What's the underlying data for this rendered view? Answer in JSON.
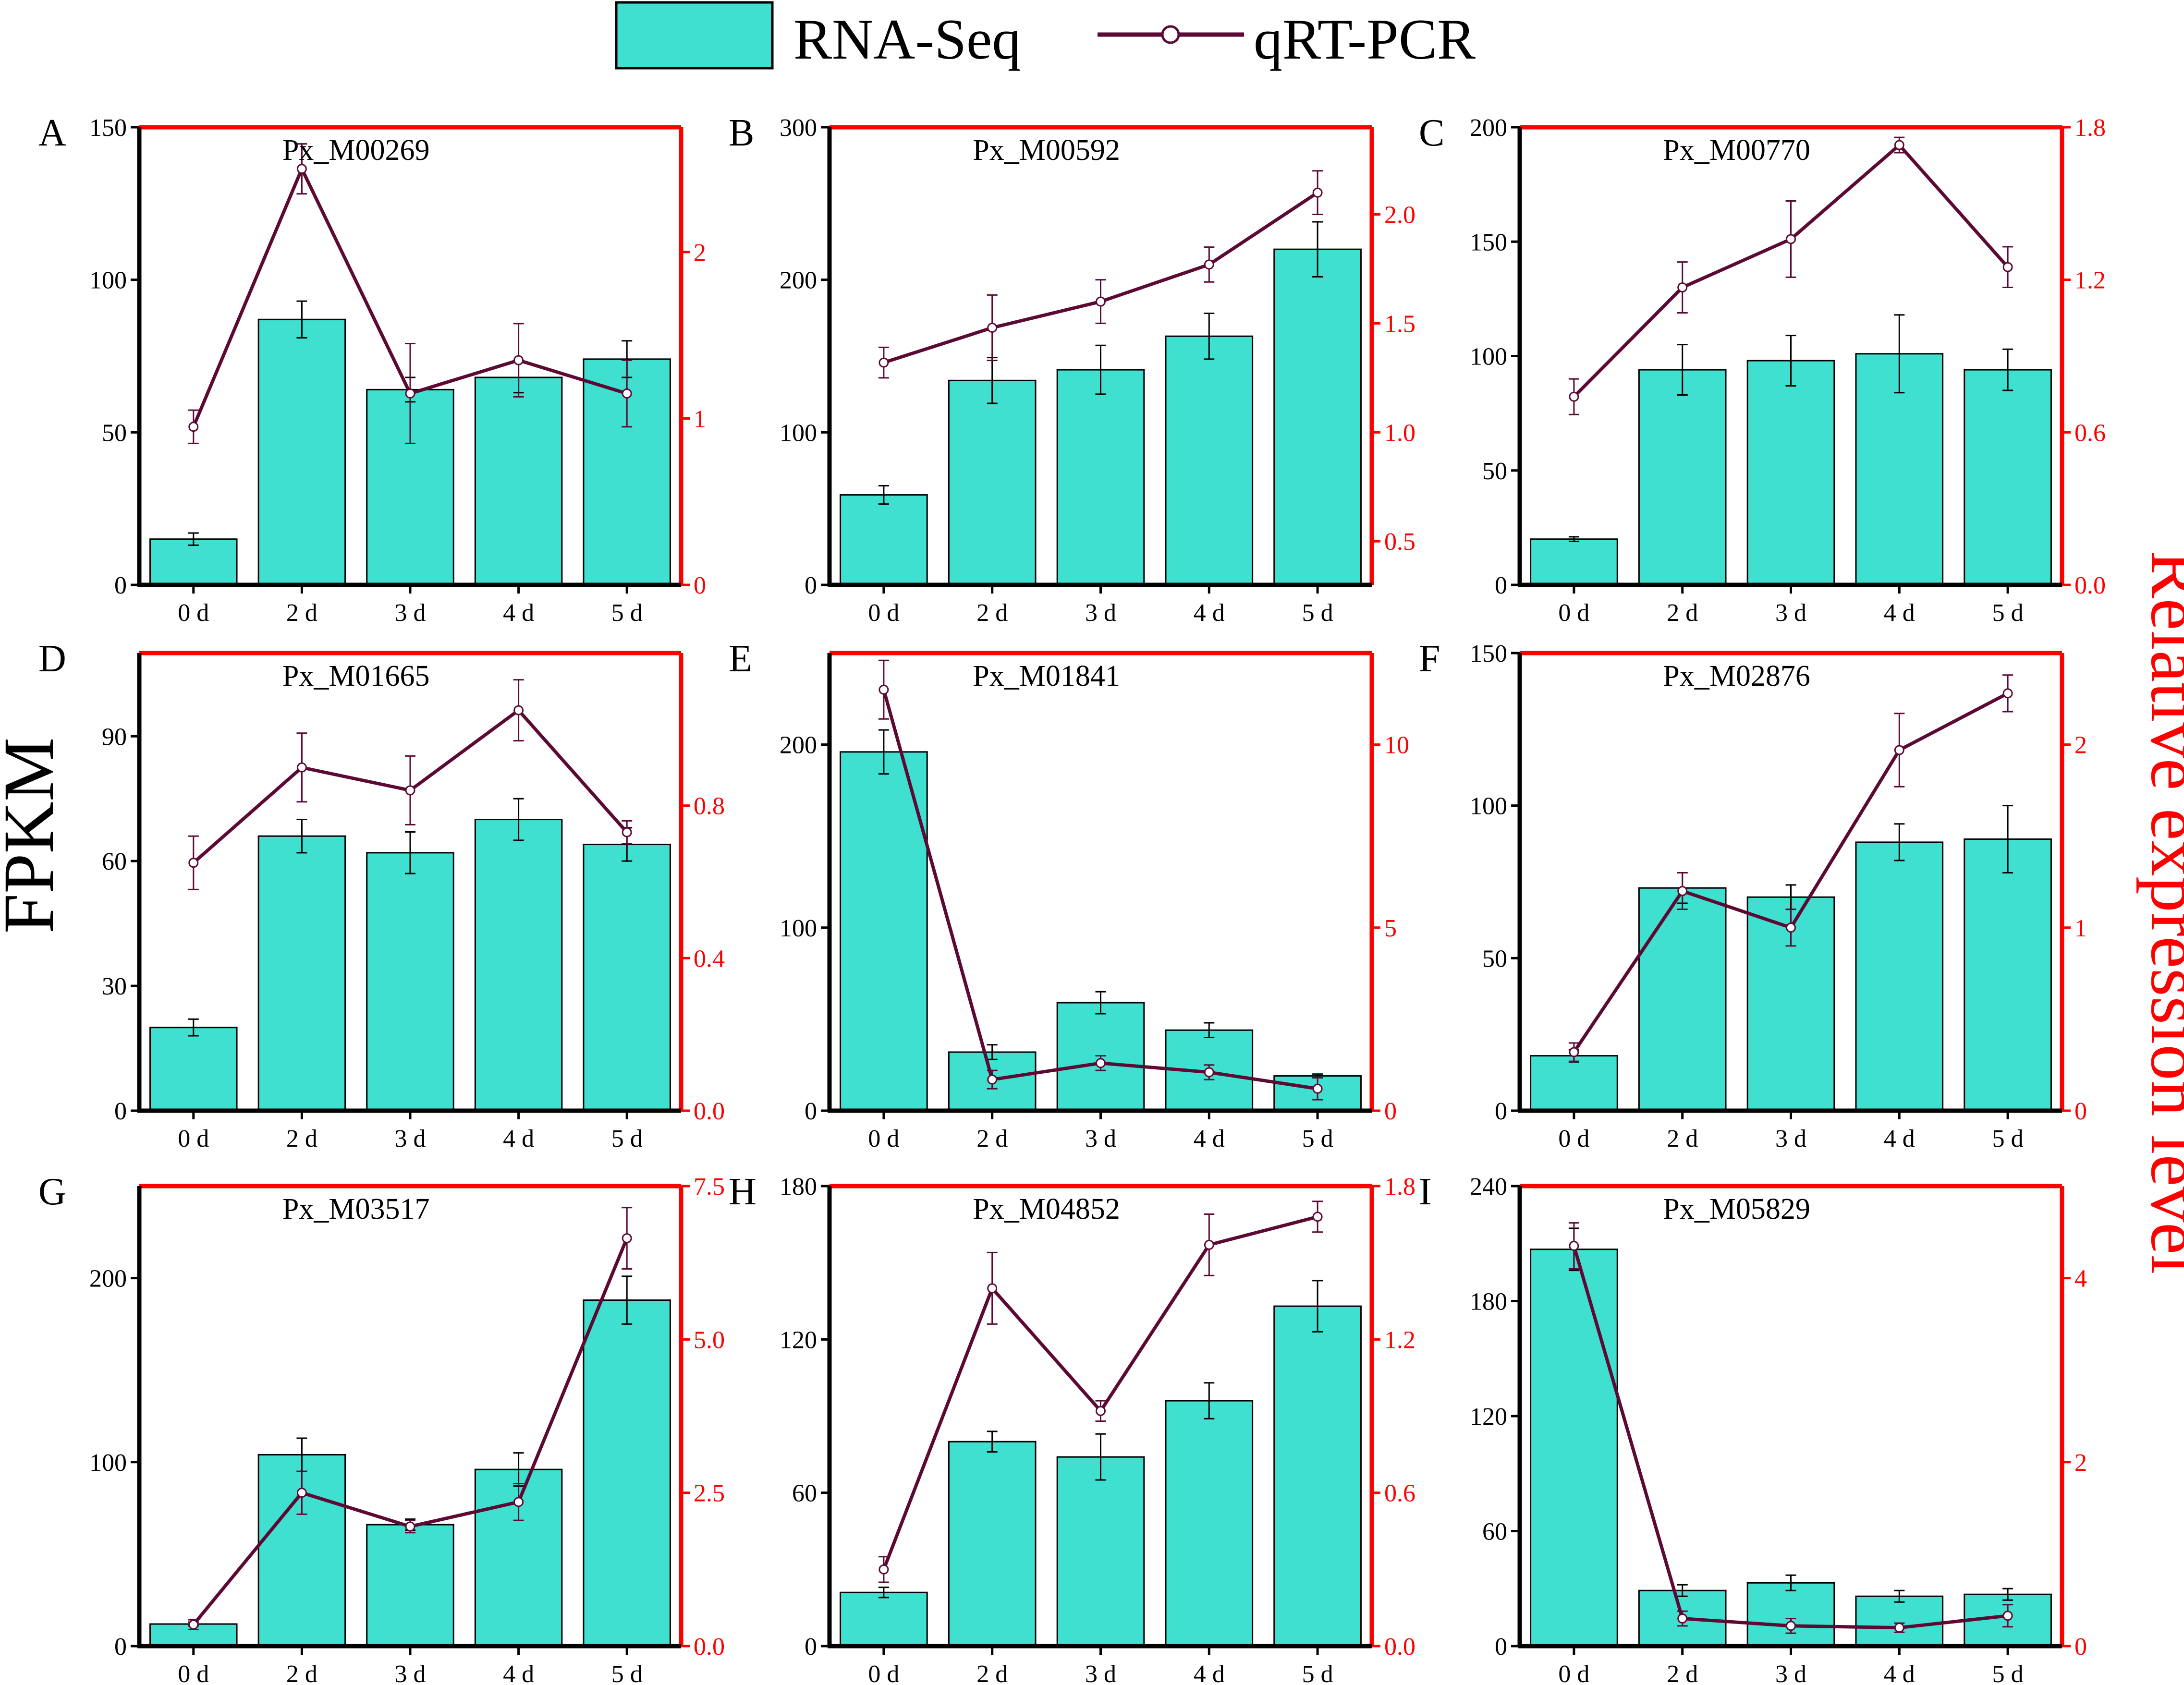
{
  "legend": {
    "bar_label": "RNA-Seq",
    "line_label": "qRT-PCR"
  },
  "y_left_label": "FPKM",
  "y_right_label": "Relative expression level",
  "colors": {
    "bar": "#40E0D0",
    "line": "#5C0A34",
    "right_axis": "#FF0000",
    "axis": "#000000"
  },
  "chart_data": [
    {
      "type": "bar+line",
      "letter": "A",
      "title": "Px_M00269",
      "categories": [
        "0 d",
        "2 d",
        "3 d",
        "4 d",
        "5 d"
      ],
      "bar": {
        "name": "RNA-Seq",
        "values": [
          15,
          87,
          64,
          68,
          74
        ],
        "errors": [
          2,
          6,
          4,
          5,
          6
        ]
      },
      "line": {
        "name": "qRT-PCR",
        "values": [
          0.95,
          2.5,
          1.15,
          1.35,
          1.15
        ],
        "errors": [
          0.1,
          0.15,
          0.3,
          0.22,
          0.2
        ]
      },
      "ylim_left": [
        0,
        150
      ],
      "yticks_left": [
        0,
        50,
        100,
        150
      ],
      "ylim_right": [
        0,
        2.75
      ],
      "yticks_right": [
        0,
        1,
        2
      ],
      "yticks_right_labels": [
        "0",
        "1",
        "2"
      ]
    },
    {
      "type": "bar+line",
      "letter": "B",
      "title": "Px_M00592",
      "categories": [
        "0 d",
        "2 d",
        "3 d",
        "4 d",
        "5 d"
      ],
      "bar": {
        "name": "RNA-Seq",
        "values": [
          59,
          134,
          141,
          163,
          220
        ],
        "errors": [
          6,
          15,
          16,
          15,
          18
        ]
      },
      "line": {
        "name": "qRT-PCR",
        "values": [
          1.32,
          1.48,
          1.6,
          1.77,
          2.1
        ],
        "errors": [
          0.07,
          0.15,
          0.1,
          0.08,
          0.1
        ]
      },
      "ylim_left": [
        0,
        300
      ],
      "yticks_left": [
        0,
        100,
        200,
        300
      ],
      "ylim_right": [
        0.3,
        2.4
      ],
      "yticks_right": [
        0.5,
        1.0,
        1.5,
        2.0
      ],
      "yticks_right_labels": [
        "0.5",
        "1.0",
        "1.5",
        "2.0"
      ]
    },
    {
      "type": "bar+line",
      "letter": "C",
      "title": "Px_M00770",
      "categories": [
        "0 d",
        "2 d",
        "3 d",
        "4 d",
        "5 d"
      ],
      "bar": {
        "name": "RNA-Seq",
        "values": [
          20,
          94,
          98,
          101,
          94
        ],
        "errors": [
          1,
          11,
          11,
          17,
          9
        ]
      },
      "line": {
        "name": "qRT-PCR",
        "values": [
          0.74,
          1.17,
          1.36,
          1.73,
          1.25
        ],
        "errors": [
          0.07,
          0.1,
          0.15,
          0.03,
          0.08
        ]
      },
      "ylim_left": [
        0,
        200
      ],
      "yticks_left": [
        0,
        50,
        100,
        150,
        200
      ],
      "ylim_right": [
        0,
        1.8
      ],
      "yticks_right": [
        0,
        0.6,
        1.2,
        1.8
      ],
      "yticks_right_labels": [
        "0.0",
        "0.6",
        "1.2",
        "1.8"
      ]
    },
    {
      "type": "bar+line",
      "letter": "D",
      "title": "Px_M01665",
      "categories": [
        "0 d",
        "2 d",
        "3 d",
        "4 d",
        "5 d"
      ],
      "bar": {
        "name": "RNA-Seq",
        "values": [
          20,
          66,
          62,
          70,
          64
        ],
        "errors": [
          2,
          4,
          5,
          5,
          4
        ]
      },
      "line": {
        "name": "qRT-PCR",
        "values": [
          0.65,
          0.9,
          0.84,
          1.05,
          0.73
        ],
        "errors": [
          0.07,
          0.09,
          0.09,
          0.08,
          0.03
        ]
      },
      "ylim_left": [
        0,
        110
      ],
      "yticks_left": [
        0,
        30,
        60,
        90
      ],
      "ylim_right": [
        0,
        1.2
      ],
      "yticks_right": [
        0,
        0.4,
        0.8
      ],
      "yticks_right_labels": [
        "0.0",
        "0.4",
        "0.8"
      ]
    },
    {
      "type": "bar+line",
      "letter": "E",
      "title": "Px_M01841",
      "categories": [
        "0 d",
        "2 d",
        "3 d",
        "4 d",
        "5 d"
      ],
      "bar": {
        "name": "RNA-Seq",
        "values": [
          196,
          32,
          59,
          44,
          19
        ],
        "errors": [
          12,
          4,
          6,
          4,
          1
        ]
      },
      "line": {
        "name": "qRT-PCR",
        "values": [
          11.5,
          0.85,
          1.3,
          1.05,
          0.6
        ],
        "errors": [
          0.8,
          0.25,
          0.2,
          0.2,
          0.3
        ]
      },
      "ylim_left": [
        0,
        250
      ],
      "yticks_left": [
        0,
        100,
        200
      ],
      "ylim_right": [
        0,
        12.5
      ],
      "yticks_right": [
        0,
        5,
        10
      ],
      "yticks_right_labels": [
        "0",
        "5",
        "10"
      ]
    },
    {
      "type": "bar+line",
      "letter": "F",
      "title": "Px_M02876",
      "categories": [
        "0 d",
        "2 d",
        "3 d",
        "4 d",
        "5 d"
      ],
      "bar": {
        "name": "RNA-Seq",
        "values": [
          18,
          73,
          70,
          88,
          89
        ],
        "errors": [
          2,
          5,
          4,
          6,
          11
        ]
      },
      "line": {
        "name": "qRT-PCR",
        "values": [
          0.32,
          1.2,
          1.0,
          1.97,
          2.28
        ],
        "errors": [
          0.05,
          0.1,
          0.1,
          0.2,
          0.1
        ]
      },
      "ylim_left": [
        0,
        150
      ],
      "yticks_left": [
        0,
        50,
        100,
        150
      ],
      "ylim_right": [
        0,
        2.5
      ],
      "yticks_right": [
        0,
        1,
        2
      ],
      "yticks_right_labels": [
        "0",
        "1",
        "2"
      ]
    },
    {
      "type": "bar+line",
      "letter": "G",
      "title": "Px_M03517",
      "categories": [
        "0 d",
        "2 d",
        "3 d",
        "4 d",
        "5 d"
      ],
      "bar": {
        "name": "RNA-Seq",
        "values": [
          12,
          104,
          66,
          96,
          188
        ],
        "errors": [
          1,
          9,
          3,
          9,
          13
        ]
      },
      "line": {
        "name": "qRT-PCR",
        "values": [
          0.35,
          2.5,
          1.95,
          2.35,
          6.65
        ],
        "errors": [
          0.08,
          0.35,
          0.1,
          0.3,
          0.5
        ]
      },
      "ylim_left": [
        0,
        250
      ],
      "yticks_left": [
        0,
        100,
        200
      ],
      "ylim_right": [
        0,
        7.5
      ],
      "yticks_right": [
        0,
        2.5,
        5.0,
        7.5
      ],
      "yticks_right_labels": [
        "0.0",
        "2.5",
        "5.0",
        "7.5"
      ]
    },
    {
      "type": "bar+line",
      "letter": "H",
      "title": "Px_M04852",
      "categories": [
        "0 d",
        "2 d",
        "3 d",
        "4 d",
        "5 d"
      ],
      "bar": {
        "name": "RNA-Seq",
        "values": [
          21,
          80,
          74,
          96,
          133
        ],
        "errors": [
          2,
          4,
          9,
          7,
          10
        ]
      },
      "line": {
        "name": "qRT-PCR",
        "values": [
          0.3,
          1.4,
          0.92,
          1.57,
          1.68
        ],
        "errors": [
          0.05,
          0.14,
          0.04,
          0.12,
          0.06
        ]
      },
      "ylim_left": [
        0,
        180
      ],
      "yticks_left": [
        0,
        60,
        120,
        180
      ],
      "ylim_right": [
        0,
        1.8
      ],
      "yticks_right": [
        0,
        0.6,
        1.2,
        1.8
      ],
      "yticks_right_labels": [
        "0.0",
        "0.6",
        "1.2",
        "1.8"
      ]
    },
    {
      "type": "bar+line",
      "letter": "I",
      "title": "Px_M05829",
      "categories": [
        "0 d",
        "2 d",
        "3 d",
        "4 d",
        "5 d"
      ],
      "bar": {
        "name": "RNA-Seq",
        "values": [
          207,
          29,
          33,
          26,
          27
        ],
        "errors": [
          11,
          3,
          4,
          3,
          3
        ]
      },
      "line": {
        "name": "qRT-PCR",
        "values": [
          4.35,
          0.3,
          0.22,
          0.2,
          0.33
        ],
        "errors": [
          0.25,
          0.08,
          0.08,
          0.05,
          0.12
        ]
      },
      "ylim_left": [
        0,
        240
      ],
      "yticks_left": [
        0,
        60,
        120,
        180,
        240
      ],
      "ylim_right": [
        0,
        5
      ],
      "yticks_right": [
        0,
        2,
        4
      ],
      "yticks_right_labels": [
        "0",
        "2",
        "4"
      ]
    }
  ]
}
